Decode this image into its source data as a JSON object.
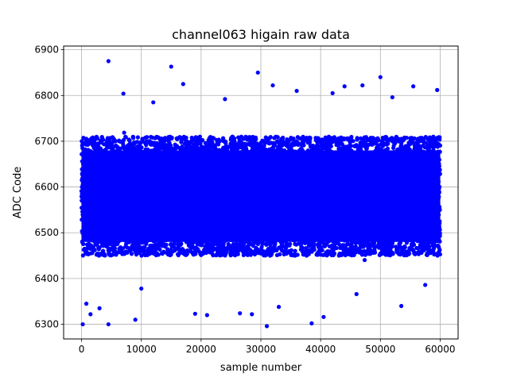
{
  "chart_data": {
    "type": "scatter",
    "title": "channel063 higain raw data",
    "xlabel": "sample number",
    "ylabel": "ADC Code",
    "xlim": [
      -3000,
      63000
    ],
    "ylim": [
      6268,
      6908
    ],
    "x_ticks": [
      0,
      10000,
      20000,
      30000,
      40000,
      50000,
      60000
    ],
    "y_ticks": [
      6300,
      6400,
      6500,
      6600,
      6700,
      6800,
      6900
    ],
    "grid": true,
    "marker_color": "#0000ff",
    "series": [
      {
        "n_samples": 60000,
        "dense_band": [
          6450,
          6710
        ],
        "outliers": [
          {
            "x": 200,
            "y": 6300
          },
          {
            "x": 800,
            "y": 6345
          },
          {
            "x": 1500,
            "y": 6322
          },
          {
            "x": 3000,
            "y": 6335
          },
          {
            "x": 4500,
            "y": 6875
          },
          {
            "x": 4500,
            "y": 6300
          },
          {
            "x": 9000,
            "y": 6310
          },
          {
            "x": 15000,
            "y": 6863
          },
          {
            "x": 17000,
            "y": 6825
          },
          {
            "x": 19000,
            "y": 6323
          },
          {
            "x": 21000,
            "y": 6320
          },
          {
            "x": 26500,
            "y": 6324
          },
          {
            "x": 28500,
            "y": 6322
          },
          {
            "x": 29500,
            "y": 6850
          },
          {
            "x": 31000,
            "y": 6296
          },
          {
            "x": 32000,
            "y": 6822
          },
          {
            "x": 38500,
            "y": 6302
          },
          {
            "x": 40500,
            "y": 6316
          },
          {
            "x": 44000,
            "y": 6820
          },
          {
            "x": 47000,
            "y": 6822
          },
          {
            "x": 50000,
            "y": 6840
          },
          {
            "x": 53500,
            "y": 6340
          },
          {
            "x": 55500,
            "y": 6820
          },
          {
            "x": 57500,
            "y": 6386
          },
          {
            "x": 59500,
            "y": 6812
          },
          {
            "x": 7000,
            "y": 6804
          },
          {
            "x": 12000,
            "y": 6785
          },
          {
            "x": 24000,
            "y": 6792
          },
          {
            "x": 36000,
            "y": 6810
          },
          {
            "x": 42000,
            "y": 6805
          },
          {
            "x": 52000,
            "y": 6796
          },
          {
            "x": 10000,
            "y": 6378
          },
          {
            "x": 33000,
            "y": 6338
          },
          {
            "x": 46000,
            "y": 6366
          }
        ]
      }
    ]
  }
}
